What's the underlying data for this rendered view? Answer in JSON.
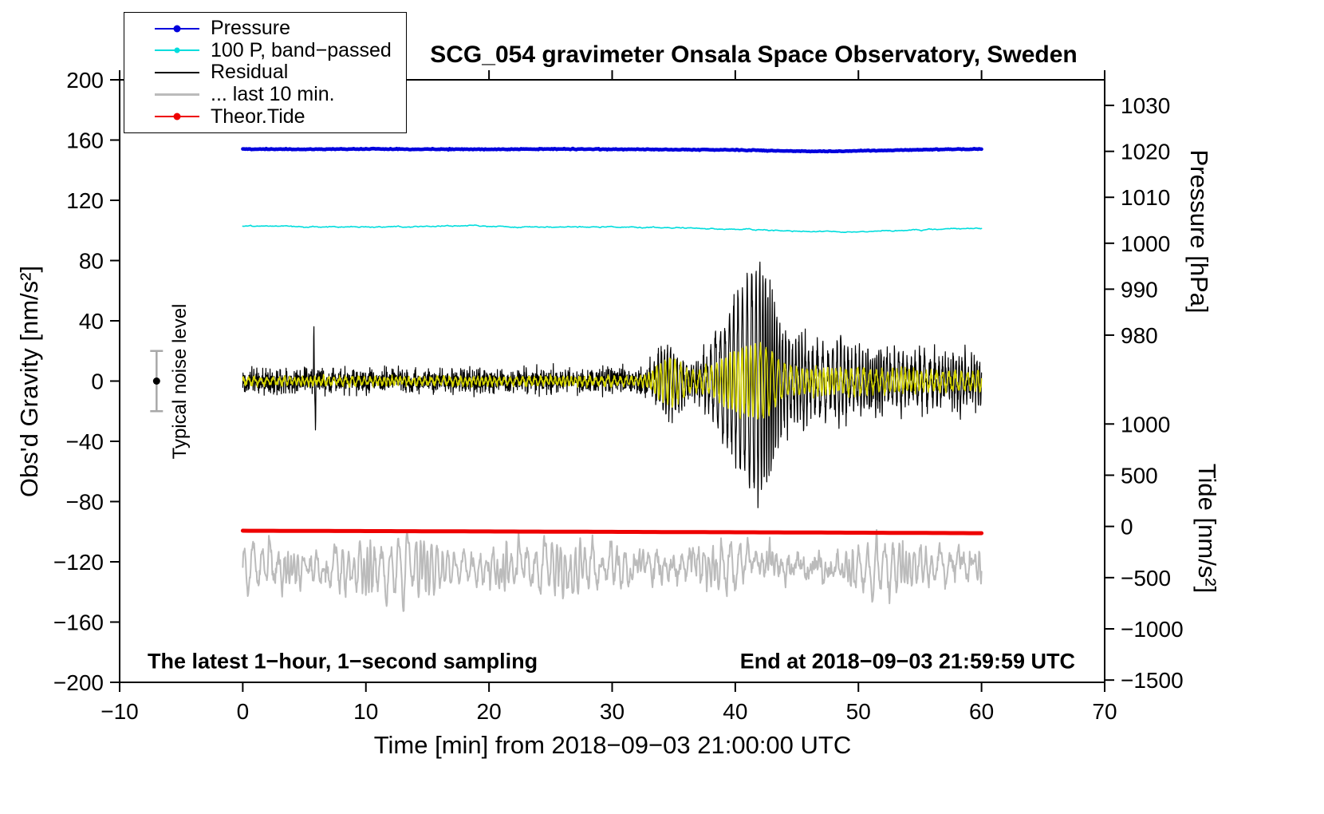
{
  "chart_data": {
    "type": "line",
    "title": "SCG_054 gravimeter Onsala Space Observatory, Sweden",
    "xlabel": "Time [min] from 2018−09−03 21:00:00 UTC",
    "ylabel_left": "Obs'd Gravity [nm/s²]",
    "ylabel_pressure": "Pressure [hPa]",
    "ylabel_tide": "Tide [nm/s²]",
    "annotations": {
      "bottom_left": "The latest 1−hour, 1−second sampling",
      "bottom_right": "End at 2018−09−03 21:59:59 UTC",
      "noise_label": "Typical noise level"
    },
    "axes": {
      "x": {
        "min": -10,
        "max": 70,
        "ticks": [
          -10,
          0,
          10,
          20,
          30,
          40,
          50,
          60,
          70
        ]
      },
      "gravity": {
        "min": -200,
        "max": 200,
        "ticks": [
          -200,
          -160,
          -120,
          -80,
          -40,
          0,
          40,
          80,
          120,
          160,
          200
        ]
      },
      "pressure": {
        "ticks": [
          980,
          990,
          1000,
          1010,
          1020,
          1030
        ],
        "gravity_equiv_per_hpa": 3.05,
        "gravity_at_1000": 91.5
      },
      "tide": {
        "ticks": [
          -1500,
          -1000,
          -500,
          0,
          500,
          1000
        ],
        "gravity_equiv_per_500": 34,
        "gravity_at_0": -96.5
      }
    },
    "legend": {
      "items": [
        {
          "label": "Pressure",
          "color": "#0000dd",
          "dot": true,
          "dot_size": 9,
          "line_width": 2
        },
        {
          "label": "100 P, band−passed",
          "color": "#00dddd",
          "dot": true,
          "dot_size": 7,
          "line_width": 2
        },
        {
          "label": "Residual",
          "color": "#000000",
          "dot": false,
          "dot_size": 0,
          "line_width": 2.5
        },
        {
          "label": "... last 10 min.",
          "color": "#bbbbbb",
          "dot": false,
          "dot_size": 0,
          "line_width": 2.5
        },
        {
          "label": "Theor.Tide",
          "color": "#ee0000",
          "dot": true,
          "dot_size": 9,
          "line_width": 2.5
        }
      ]
    },
    "series": {
      "pressure_hpa": {
        "color": "#0000dd",
        "width": 4.5,
        "noise": 0.05,
        "anchors": [
          [
            0,
            1020.5
          ],
          [
            5,
            1020.45
          ],
          [
            10,
            1020.5
          ],
          [
            15,
            1020.45
          ],
          [
            20,
            1020.45
          ],
          [
            25,
            1020.5
          ],
          [
            30,
            1020.45
          ],
          [
            35,
            1020.4
          ],
          [
            40,
            1020.3
          ],
          [
            43,
            1020.15
          ],
          [
            46,
            1020.0
          ],
          [
            48,
            1020.0
          ],
          [
            51,
            1020.15
          ],
          [
            54,
            1020.3
          ],
          [
            57,
            1020.45
          ],
          [
            60,
            1020.5
          ]
        ]
      },
      "band_passed": {
        "color": "#00dddd",
        "width": 1.6,
        "noise": 0.5,
        "anchors_gravity": [
          [
            0,
            103
          ],
          [
            4,
            102.6
          ],
          [
            8,
            102.2
          ],
          [
            12,
            102.4
          ],
          [
            16,
            102.8
          ],
          [
            18,
            103
          ],
          [
            22,
            102.4
          ],
          [
            26,
            102.2
          ],
          [
            30,
            102.3
          ],
          [
            34,
            101.8
          ],
          [
            38,
            101.2
          ],
          [
            42,
            100.4
          ],
          [
            45,
            99.6
          ],
          [
            48,
            99.2
          ],
          [
            51,
            99.3
          ],
          [
            54,
            100.2
          ],
          [
            57,
            101
          ],
          [
            60,
            101.4
          ]
        ]
      },
      "residual": {
        "color": "#000000",
        "width": 1.2,
        "noise_anchors": [
          [
            0,
            3.8
          ],
          [
            32,
            4
          ],
          [
            34,
            5
          ],
          [
            44,
            5.5
          ],
          [
            60,
            5
          ]
        ],
        "spike": {
          "x_up": 5.78,
          "amp_up": 36,
          "x_down": 5.9,
          "amp_down": 30
        },
        "envelope_anchors": [
          [
            0,
            0
          ],
          [
            32.6,
            0
          ],
          [
            33.2,
            8
          ],
          [
            34,
            16
          ],
          [
            34.6,
            22
          ],
          [
            35.2,
            17
          ],
          [
            36,
            10
          ],
          [
            36.8,
            7
          ],
          [
            37.6,
            14
          ],
          [
            38.4,
            28
          ],
          [
            39.2,
            40
          ],
          [
            40,
            52
          ],
          [
            40.8,
            62
          ],
          [
            41.4,
            72
          ],
          [
            42,
            77
          ],
          [
            42.5,
            68
          ],
          [
            43,
            54
          ],
          [
            43.6,
            36
          ],
          [
            44.2,
            26
          ],
          [
            44.8,
            22
          ],
          [
            45.5,
            26
          ],
          [
            46.2,
            18
          ],
          [
            47,
            22
          ],
          [
            47.8,
            16
          ],
          [
            48.6,
            22
          ],
          [
            49.4,
            15
          ],
          [
            50.2,
            20
          ],
          [
            51,
            14
          ],
          [
            51.8,
            19
          ],
          [
            52.6,
            13
          ],
          [
            53.4,
            18
          ],
          [
            54.2,
            12
          ],
          [
            55,
            16
          ],
          [
            55.8,
            11
          ],
          [
            56.6,
            15
          ],
          [
            57.4,
            10
          ],
          [
            58.2,
            14
          ],
          [
            59,
            10
          ],
          [
            60,
            12
          ]
        ]
      },
      "residual_filtered": {
        "color": "#d4d400",
        "width": 1.5,
        "envelope_anchors": [
          [
            0,
            2
          ],
          [
            32.6,
            2.5
          ],
          [
            33.4,
            7
          ],
          [
            34.2,
            13
          ],
          [
            34.8,
            16
          ],
          [
            35.4,
            12
          ],
          [
            36.2,
            7
          ],
          [
            37,
            6
          ],
          [
            38,
            10
          ],
          [
            39,
            15
          ],
          [
            40,
            20
          ],
          [
            41,
            24
          ],
          [
            42,
            25
          ],
          [
            42.8,
            21
          ],
          [
            43.6,
            13
          ],
          [
            44.4,
            9
          ],
          [
            45.5,
            8
          ],
          [
            47,
            8
          ],
          [
            48.5,
            7
          ],
          [
            50,
            8
          ],
          [
            51.5,
            6
          ],
          [
            53,
            7
          ],
          [
            54.5,
            6
          ],
          [
            56,
            6
          ],
          [
            57.5,
            5
          ],
          [
            59,
            6
          ],
          [
            60,
            6
          ]
        ]
      },
      "theor_tide": {
        "color": "#ee0000",
        "width": 5,
        "anchors_tide": [
          [
            0,
            -42
          ],
          [
            15,
            -47
          ],
          [
            30,
            -53
          ],
          [
            45,
            -59
          ],
          [
            60,
            -66
          ]
        ]
      },
      "last10": {
        "color": "#bbbbbb",
        "width": 2,
        "center": -124,
        "wobble_amp": 10,
        "noise": 5.5
      }
    },
    "noise_marker": {
      "x": -7,
      "center": 0,
      "half_range": 20
    }
  }
}
